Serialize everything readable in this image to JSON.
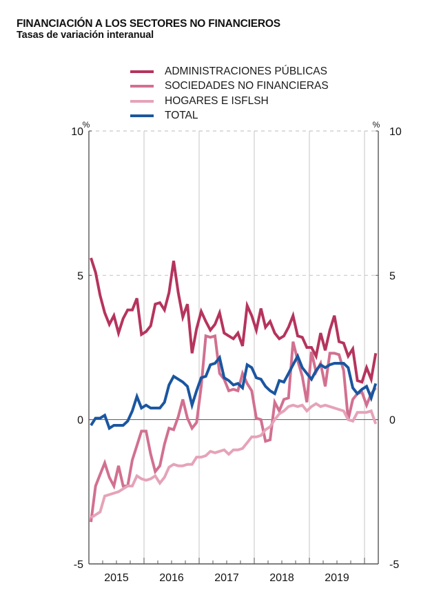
{
  "header": {
    "title": "FINANCIACIÓN A LOS SECTORES NO FINANCIEROS",
    "subtitle": "Tasas de variación interanual"
  },
  "chart_data": {
    "type": "line",
    "title": "FINANCIACIÓN A LOS SECTORES NO FINANCIEROS",
    "subtitle": "Tasas de variación interanual",
    "xlabel": "",
    "ylabel": "%",
    "y_unit_left": "%",
    "y_unit_right": "%",
    "ylim": [
      -5,
      10
    ],
    "yticks": [
      10,
      5,
      0,
      -5
    ],
    "ytick_labels": [
      "10",
      "5",
      "0",
      "-5"
    ],
    "x_start": "2015-01",
    "x_end": "2020-03",
    "x_frequency": "monthly",
    "xtick_labels": [
      "2015",
      "2016",
      "2017",
      "2018",
      "2019"
    ],
    "grid": "vertical lines at year boundaries, dashed line at 10",
    "legend_position": "top-center",
    "series": [
      {
        "name": "ADMINISTRACIONES PÚBLICAS",
        "color": "#b5345d",
        "values": [
          5.6,
          5.1,
          4.3,
          3.7,
          3.3,
          3.6,
          3.0,
          3.5,
          3.8,
          3.8,
          4.2,
          2.95,
          3.05,
          3.25,
          4.0,
          4.05,
          3.8,
          4.4,
          5.5,
          4.4,
          3.55,
          4.0,
          2.3,
          3.15,
          3.75,
          3.4,
          3.1,
          3.3,
          3.7,
          3.0,
          2.9,
          2.8,
          3.0,
          2.55,
          3.95,
          3.6,
          3.1,
          3.85,
          3.2,
          3.4,
          3.0,
          2.8,
          2.9,
          3.2,
          3.6,
          2.9,
          2.85,
          2.5,
          2.5,
          2.2,
          3.0,
          2.4,
          3.1,
          3.6,
          2.7,
          2.65,
          2.2,
          2.45,
          1.35,
          1.3,
          1.8,
          1.4,
          2.3
        ]
      },
      {
        "name": "SOCIEDADES NO FINANCIERAS",
        "color": "#d27090",
        "values": [
          -3.55,
          -2.3,
          -1.9,
          -1.5,
          -2.0,
          -2.3,
          -1.6,
          -2.3,
          -2.3,
          -1.4,
          -0.9,
          -0.4,
          -0.4,
          -1.2,
          -1.8,
          -1.6,
          -0.85,
          -0.3,
          -0.35,
          0.1,
          0.7,
          0.05,
          -0.3,
          -0.1,
          1.15,
          2.9,
          2.85,
          2.9,
          1.6,
          1.4,
          1.0,
          1.05,
          1.0,
          1.6,
          1.25,
          1.0,
          0.05,
          0.0,
          -0.75,
          -0.7,
          0.6,
          0.3,
          0.7,
          0.75,
          2.7,
          2.05,
          1.5,
          0.6,
          2.35,
          1.65,
          1.95,
          1.15,
          2.3,
          2.3,
          2.25,
          1.7,
          0.0,
          0.7,
          0.9,
          0.95,
          0.5,
          0.9,
          1.1
        ]
      },
      {
        "name": "HOGARES E ISFLSH",
        "color": "#e5a3b8",
        "values": [
          -3.4,
          -3.3,
          -3.2,
          -2.65,
          -2.6,
          -2.55,
          -2.5,
          -2.4,
          -2.3,
          -2.3,
          -1.95,
          -2.05,
          -2.1,
          -2.05,
          -1.95,
          -2.2,
          -2.0,
          -1.65,
          -1.55,
          -1.6,
          -1.6,
          -1.55,
          -1.55,
          -1.3,
          -1.3,
          -1.25,
          -1.1,
          -1.15,
          -1.1,
          -1.05,
          -1.2,
          -1.05,
          -1.05,
          -1.0,
          -0.8,
          -0.6,
          -0.6,
          -0.55,
          -0.35,
          -0.25,
          0.0,
          0.2,
          0.3,
          0.45,
          0.5,
          0.45,
          0.5,
          0.3,
          0.45,
          0.55,
          0.45,
          0.5,
          0.45,
          0.4,
          0.35,
          0.3,
          0.0,
          -0.05,
          0.25,
          0.25,
          0.25,
          0.3,
          -0.15
        ]
      },
      {
        "name": "TOTAL",
        "color": "#1a56a0",
        "values": [
          -0.2,
          0.05,
          0.05,
          0.15,
          -0.3,
          -0.2,
          -0.2,
          -0.2,
          -0.05,
          0.3,
          0.8,
          0.4,
          0.5,
          0.4,
          0.4,
          0.4,
          0.6,
          1.2,
          1.5,
          1.4,
          1.3,
          1.15,
          0.5,
          1.0,
          1.45,
          1.5,
          1.9,
          1.95,
          2.15,
          1.45,
          1.35,
          1.2,
          1.25,
          1.1,
          1.9,
          1.8,
          1.45,
          1.4,
          1.15,
          1.0,
          0.9,
          1.35,
          1.3,
          1.6,
          1.9,
          2.2,
          1.8,
          1.6,
          1.4,
          1.7,
          1.9,
          1.8,
          1.9,
          1.95,
          1.95,
          1.95,
          1.8,
          1.1,
          0.9,
          1.05,
          1.15,
          0.75,
          1.25
        ]
      }
    ]
  }
}
